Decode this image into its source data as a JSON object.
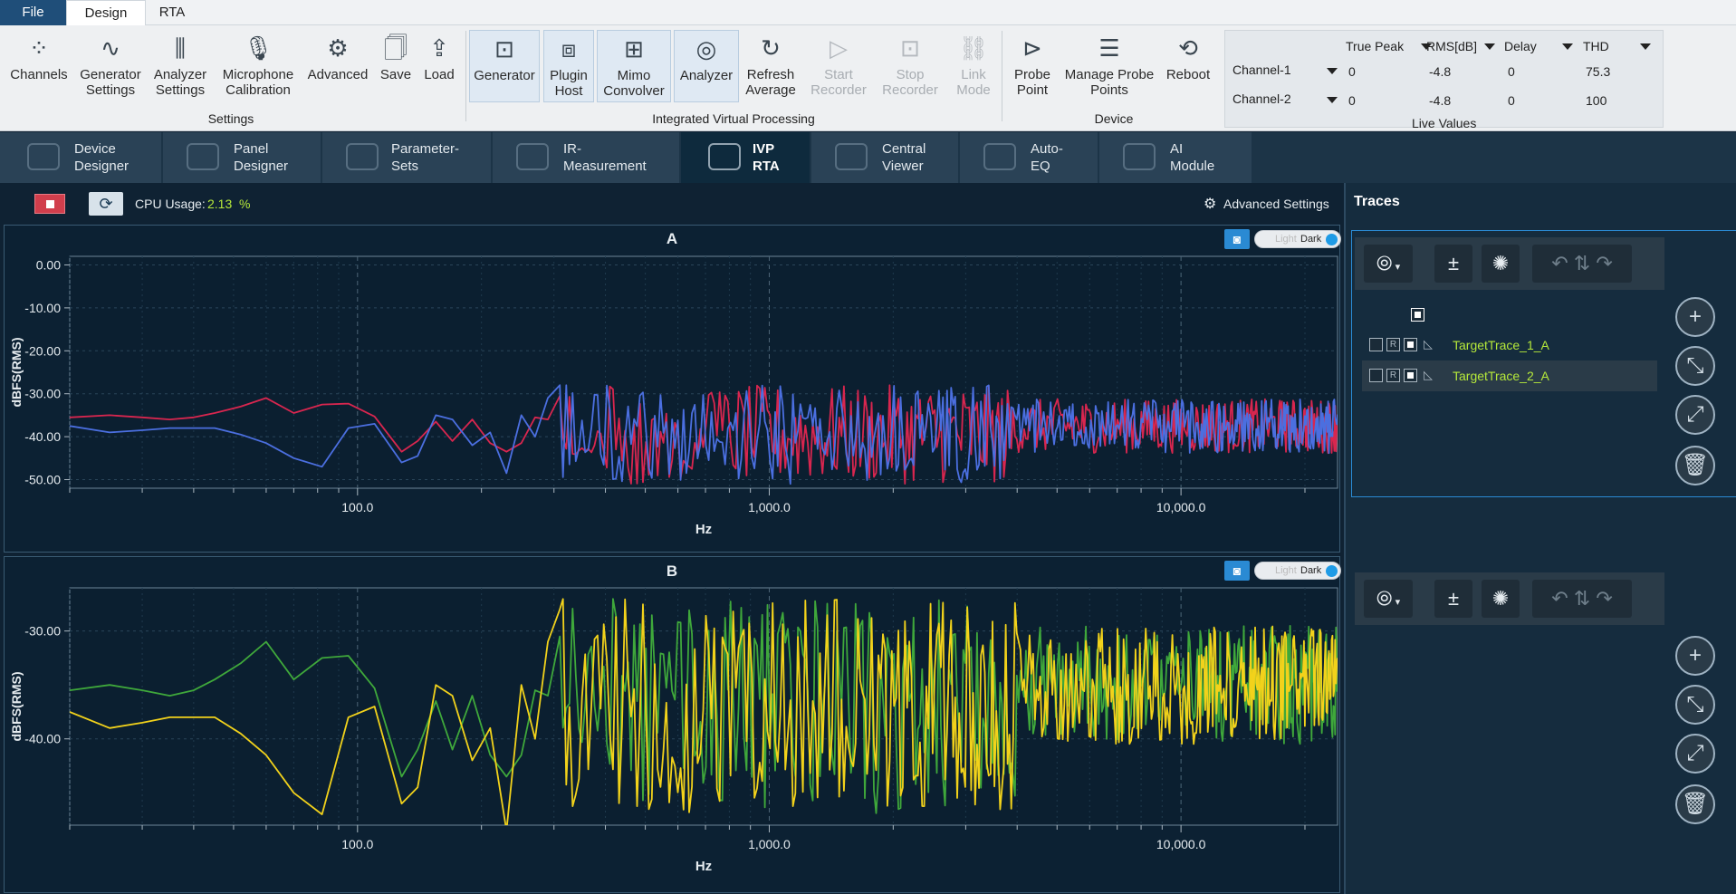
{
  "ribbon_tabs": {
    "file": "File",
    "design": "Design",
    "rta": "RTA"
  },
  "settings_group": {
    "label": "Settings",
    "buttons": [
      {
        "label1": "Channels",
        "label2": "",
        "icon": "channels-icon"
      },
      {
        "label1": "Generator",
        "label2": "Settings",
        "icon": "generator-settings-icon"
      },
      {
        "label1": "Analyzer",
        "label2": "Settings",
        "icon": "analyzer-settings-icon"
      },
      {
        "label1": "Microphone",
        "label2": "Calibration",
        "icon": "microphone-icon"
      },
      {
        "label1": "Advanced",
        "label2": "",
        "icon": "gear-icon"
      },
      {
        "label1": "Save",
        "label2": "",
        "icon": "save-icon"
      },
      {
        "label1": "Load",
        "label2": "",
        "icon": "load-icon"
      }
    ]
  },
  "ivp_group": {
    "label": "Integrated Virtual Processing",
    "buttons": [
      {
        "label1": "Generator",
        "label2": "",
        "icon": "generator-icon"
      },
      {
        "label1": "Plugin",
        "label2": "Host",
        "icon": "plugin-icon"
      },
      {
        "label1": "Mimo",
        "label2": "Convolver",
        "icon": "mimo-icon"
      },
      {
        "label1": "Analyzer",
        "label2": "",
        "icon": "analyzer-icon"
      },
      {
        "label1": "Refresh",
        "label2": "Average",
        "icon": "refresh-icon"
      },
      {
        "label1": "Start",
        "label2": "Recorder",
        "icon": "start-recorder-icon"
      },
      {
        "label1": "Stop",
        "label2": "Recorder",
        "icon": "stop-recorder-icon"
      },
      {
        "label1": "Link",
        "label2": "Mode",
        "icon": "link-mode-icon"
      }
    ]
  },
  "device_group": {
    "label": "Device",
    "buttons": [
      {
        "label1": "Probe",
        "label2": "Point",
        "icon": "probe-point-icon"
      },
      {
        "label1": "Manage Probe",
        "label2": "Points",
        "icon": "manage-probe-icon"
      },
      {
        "label1": "Reboot",
        "label2": "",
        "icon": "reboot-icon"
      }
    ]
  },
  "live_values": {
    "label": "Live Values",
    "columns": [
      "True Peak",
      "RMS[dB]",
      "Delay",
      "THD"
    ],
    "rows": [
      {
        "channel": "Channel-1",
        "true_peak": "0",
        "rms": "-4.8",
        "delay": "0",
        "thd": "75.3"
      },
      {
        "channel": "Channel-2",
        "true_peak": "0",
        "rms": "-4.8",
        "delay": "0",
        "thd": "100"
      }
    ]
  },
  "nav_tabs": [
    {
      "l1": "Device",
      "l2": "Designer"
    },
    {
      "l1": "Panel",
      "l2": "Designer"
    },
    {
      "l1": "Parameter-",
      "l2": "Sets"
    },
    {
      "l1": "IR-",
      "l2": "Measurement"
    },
    {
      "l1": "IVP",
      "l2": "RTA"
    },
    {
      "l1": "Central",
      "l2": "Viewer"
    },
    {
      "l1": "Auto-",
      "l2": "EQ"
    },
    {
      "l1": "AI",
      "l2": "Module"
    }
  ],
  "status": {
    "cpu_label": "CPU Usage:",
    "cpu_value": "2.13",
    "cpu_unit": "%",
    "advanced_settings": "Advanced Settings"
  },
  "toggle": {
    "light": "Light",
    "dark": "Dark"
  },
  "traces_panel": {
    "title": "Traces",
    "traces": [
      {
        "name": "TargetTrace_1_A"
      },
      {
        "name": "TargetTrace_2_A"
      }
    ],
    "r_label": "R"
  },
  "colors": {
    "trace_a1": "#d8264f",
    "trace_a2": "#4b6fe0",
    "trace_b1": "#f2d21b",
    "trace_b2": "#3fa83b",
    "lime": "#b7ea3a"
  },
  "chart_data": [
    {
      "type": "line",
      "title": "A",
      "xlabel": "Hz",
      "ylabel": "dBFS(RMS)",
      "xscale": "log",
      "xlim": [
        20,
        24000
      ],
      "ylim": [
        -52,
        2
      ],
      "xticks": [
        "100.0",
        "1,000.0",
        "10,000.0"
      ],
      "yticks": [
        "0.00",
        "-10.00",
        "-20.00",
        "-30.00",
        "-40.00",
        "-50.00"
      ],
      "grid": true,
      "series": [
        {
          "x": [
            20,
            25,
            30,
            35,
            40,
            45,
            52,
            60,
            70,
            82,
            95,
            110,
            128,
            140,
            155,
            170,
            190,
            210,
            230,
            250,
            270,
            290,
            310
          ],
          "y": [
            -35.5,
            -35.0,
            -35.5,
            -36.0,
            -35.5,
            -34.5,
            -33.0,
            -31.0,
            -34.5,
            -32.5,
            -32.3,
            -35.3,
            -43.5,
            -41.0,
            -36.5,
            -41.0,
            -36.0,
            -41.5,
            -43.5,
            -41.5,
            -35.5,
            -36.0,
            -30.5
          ]
        },
        {
          "x": [
            20,
            25,
            30,
            35,
            40,
            45,
            52,
            60,
            70,
            82,
            95,
            110,
            128,
            140,
            155,
            170,
            190,
            210,
            230,
            250,
            270,
            290,
            310
          ],
          "y": [
            -37.5,
            -39.0,
            -38.5,
            -38.0,
            -38.0,
            -38.0,
            -39.5,
            -41.5,
            -45.0,
            -47.0,
            -38.0,
            -37.0,
            -46.0,
            -44.5,
            -35.0,
            -36.0,
            -42.0,
            -39.0,
            -48.5,
            -35.0,
            -40.0,
            -31.0,
            -28.0
          ]
        }
      ]
    },
    {
      "type": "line",
      "title": "B",
      "xlabel": "Hz",
      "ylabel": "dBFS(RMS)",
      "xscale": "log",
      "xlim": [
        20,
        24000
      ],
      "ylim": [
        -48,
        -26
      ],
      "xticks": [
        "100.0",
        "1,000.0",
        "10,000.0"
      ],
      "yticks": [
        "-30.00",
        "-40.00"
      ],
      "grid": true,
      "series": [
        {
          "x": [
            20,
            25,
            30,
            35,
            40,
            45,
            52,
            60,
            70,
            82,
            95,
            110,
            128,
            140,
            155,
            170,
            190,
            210,
            230,
            250,
            270,
            290,
            310
          ],
          "y": [
            -35.5,
            -35.0,
            -35.5,
            -36.0,
            -35.5,
            -34.5,
            -33.0,
            -31.0,
            -34.5,
            -32.5,
            -32.3,
            -35.3,
            -43.5,
            -41.0,
            -36.5,
            -41.0,
            -36.0,
            -41.5,
            -43.5,
            -41.5,
            -35.5,
            -36.0,
            -30.5
          ]
        },
        {
          "x": [
            20,
            25,
            30,
            35,
            40,
            45,
            52,
            60,
            70,
            82,
            95,
            110,
            128,
            140,
            155,
            170,
            190,
            210,
            230,
            250,
            270,
            290,
            310
          ],
          "y": [
            -37.5,
            -39.0,
            -38.5,
            -38.0,
            -38.0,
            -38.0,
            -39.5,
            -41.5,
            -45.0,
            -47.0,
            -38.0,
            -37.0,
            -46.0,
            -44.5,
            -35.0,
            -36.0,
            -42.0,
            -39.0,
            -48.5,
            -35.0,
            -40.0,
            -31.0,
            -28.0
          ]
        }
      ]
    }
  ]
}
